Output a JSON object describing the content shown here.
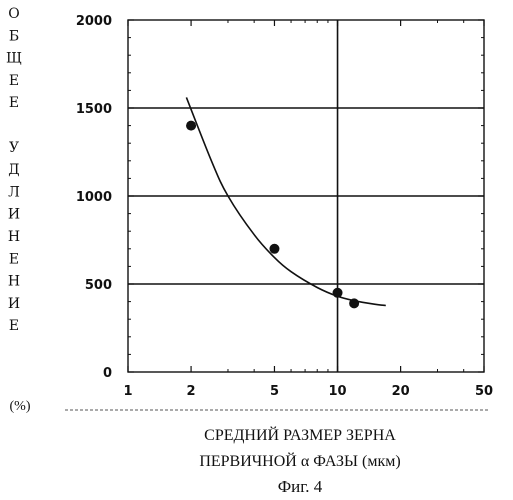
{
  "chart_data": {
    "type": "scatter",
    "title": "",
    "xlabel_line1": "СРЕДНИЙ РАЗМЕР ЗЕРНА",
    "xlabel_line2": "ПЕРВИЧНОЙ α ФАЗЫ (мкм)",
    "figure_caption": "Фиг. 4",
    "ylabel_letters": [
      "О",
      "Б",
      "Щ",
      "Е",
      "Е",
      "",
      "У",
      "Д",
      "Л",
      "И",
      "Н",
      "Е",
      "Н",
      "И",
      "Е"
    ],
    "y_unit": "(%)",
    "x_scale": "log",
    "xlim": [
      1,
      50
    ],
    "ylim": [
      0,
      2000
    ],
    "x_ticks": [
      1,
      2,
      5,
      10,
      20,
      50
    ],
    "x_tick_labels": [
      "1",
      "2",
      "5",
      "10",
      "20",
      "50"
    ],
    "y_ticks": [
      0,
      500,
      1000,
      1500,
      2000
    ],
    "y_tick_labels": [
      "0",
      "500",
      "1000",
      "1500",
      "2000"
    ],
    "grid": "major x at 10, y at 500/1000/1500",
    "points": [
      {
        "x": 2,
        "y": 1400
      },
      {
        "x": 5,
        "y": 700
      },
      {
        "x": 10,
        "y": 450
      },
      {
        "x": 12,
        "y": 390
      }
    ],
    "fit_curve": [
      {
        "x": 1.9,
        "y": 1560
      },
      {
        "x": 2.5,
        "y": 1200
      },
      {
        "x": 3,
        "y": 1000
      },
      {
        "x": 4,
        "y": 780
      },
      {
        "x": 5,
        "y": 650
      },
      {
        "x": 6,
        "y": 570
      },
      {
        "x": 8,
        "y": 480
      },
      {
        "x": 10,
        "y": 430
      },
      {
        "x": 12,
        "y": 405
      },
      {
        "x": 15,
        "y": 385
      },
      {
        "x": 17,
        "y": 378
      }
    ]
  }
}
